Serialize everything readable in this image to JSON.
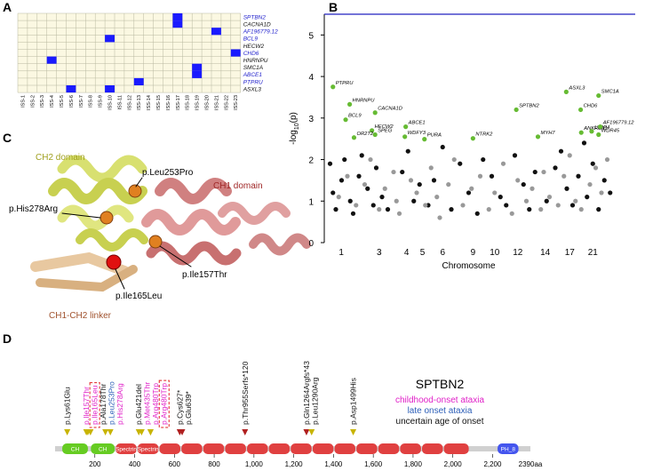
{
  "panel_labels": [
    "A",
    "B",
    "C",
    "D"
  ],
  "heatmap": {
    "columns": [
      "ISS-1",
      "ISS-2",
      "ISS-3",
      "ISS-4",
      "ISS-5",
      "ISS-6",
      "ISS-7",
      "ISS-8",
      "ISS-9",
      "ISS-10",
      "ISS-11",
      "ISS-12",
      "ISS-13",
      "ISS-14",
      "ISS-15",
      "ISS-16",
      "ISS-17",
      "ISS-18",
      "ISS-19",
      "ISS-20",
      "ISS-21",
      "ISS-22",
      "ISS-23"
    ],
    "cell_color": "#1a1aff",
    "rows": [
      {
        "gene": "SPTBN2",
        "color": "#2222cc",
        "filled": [
          17
        ]
      },
      {
        "gene": "CACNA1D",
        "color": "#111111",
        "filled": [
          17
        ]
      },
      {
        "gene": "AF196779.12",
        "color": "#2222cc",
        "filled": [
          21
        ]
      },
      {
        "gene": "BCL9",
        "color": "#2222cc",
        "filled": [
          10
        ]
      },
      {
        "gene": "HECW2",
        "color": "#111111",
        "filled": []
      },
      {
        "gene": "CHD6",
        "color": "#2222cc",
        "filled": [
          23
        ]
      },
      {
        "gene": "HNRNPU",
        "color": "#111111",
        "filled": [
          4
        ]
      },
      {
        "gene": "SMC1A",
        "color": "#111111",
        "filled": [
          19
        ]
      },
      {
        "gene": "ABCE1",
        "color": "#2222cc",
        "filled": [
          19
        ]
      },
      {
        "gene": "PTPRU",
        "color": "#2222cc",
        "filled": [
          13
        ]
      },
      {
        "gene": "ASXL3",
        "color": "#111111",
        "filled": [
          6,
          10
        ]
      }
    ]
  },
  "chart_data": {
    "type": "scatter",
    "ylabel": [
      "-log",
      "10",
      "(p)"
    ],
    "xlabel": "Chromosome",
    "ylim": [
      0,
      5.5
    ],
    "yticks": [
      0,
      1,
      2,
      3,
      4,
      5
    ],
    "xlim": [
      0,
      100
    ],
    "xticks": [
      {
        "value": 5.9,
        "label": "1"
      },
      {
        "value": 19,
        "label": "3"
      },
      {
        "value": 28.5,
        "label": "4"
      },
      {
        "value": 34,
        "label": "5"
      },
      {
        "value": 41,
        "label": "6"
      },
      {
        "value": 51.5,
        "label": "9"
      },
      {
        "value": 59,
        "label": "10"
      },
      {
        "value": 67,
        "label": "12"
      },
      {
        "value": 76.5,
        "label": "14"
      },
      {
        "value": 85,
        "label": "17"
      },
      {
        "value": 93,
        "label": "21"
      }
    ],
    "threshold": 5.5,
    "threshold_color": "#2020c0",
    "series": [
      {
        "color": "#111111",
        "x": [
          2,
          3,
          4,
          6,
          7,
          9,
          10,
          12,
          13,
          15,
          17,
          18,
          20,
          22,
          27,
          29,
          31,
          33,
          36,
          38,
          41,
          44,
          47,
          50,
          53,
          55,
          58,
          61,
          63,
          66,
          69,
          71,
          73,
          77,
          80,
          82,
          84,
          86,
          88,
          90,
          91,
          93,
          95,
          97,
          99
        ],
        "values": [
          1.9,
          1.2,
          0.8,
          1.5,
          2.0,
          1.0,
          0.7,
          1.6,
          2.1,
          1.3,
          0.9,
          1.8,
          1.1,
          0.8,
          1.7,
          2.2,
          1.0,
          1.4,
          0.9,
          1.5,
          2.3,
          0.8,
          1.9,
          1.2,
          0.7,
          2.0,
          1.6,
          1.1,
          0.9,
          2.1,
          1.4,
          0.8,
          1.7,
          1.0,
          1.8,
          2.2,
          1.3,
          0.9,
          1.6,
          2.4,
          1.1,
          1.9,
          0.8,
          1.5,
          1.2
        ]
      },
      {
        "color": "#999999",
        "x": [
          5,
          8,
          11,
          14,
          16,
          19,
          21,
          24,
          25,
          26,
          30,
          32,
          35,
          37,
          39,
          40,
          43,
          45,
          48,
          51,
          54,
          57,
          59,
          62,
          65,
          67,
          70,
          72,
          75,
          76,
          78,
          81,
          83,
          85,
          87,
          89,
          92,
          94,
          96,
          98
        ],
        "values": [
          1.1,
          1.6,
          0.9,
          1.4,
          2.0,
          0.8,
          1.3,
          1.7,
          1.0,
          0.7,
          1.5,
          1.2,
          0.9,
          1.8,
          1.1,
          0.6,
          1.4,
          2.0,
          0.9,
          1.3,
          1.6,
          0.8,
          1.2,
          1.9,
          0.7,
          1.5,
          1.0,
          1.3,
          0.8,
          1.7,
          1.1,
          0.9,
          1.6,
          2.1,
          1.0,
          0.8,
          1.4,
          1.8,
          1.2,
          2.0
        ]
      },
      {
        "color": "#66bb33",
        "labels": [
          "PTPRU",
          "HNRNPU",
          "BCL9",
          "CACNA1D",
          "HECW2",
          "SPEG",
          "OR2T2",
          "ABCE1",
          "WDFY3",
          "PURA",
          "NTRK2",
          "SPTBN2",
          "MYH7",
          "ANKRD11",
          "ASXL3",
          "SMC1A",
          "CHD6",
          "LTBP4",
          "AF196779.12",
          "WDR45"
        ],
        "x": [
          3,
          8.8,
          7.4,
          17.6,
          16.5,
          17.6,
          10.3,
          28.2,
          27.9,
          34.7,
          51.5,
          66.5,
          74,
          89,
          83.8,
          95,
          88.8,
          92.6,
          95.6,
          95
        ],
        "values": [
          3.75,
          3.33,
          2.96,
          3.13,
          2.7,
          2.6,
          2.53,
          2.79,
          2.55,
          2.49,
          2.51,
          3.2,
          2.55,
          2.65,
          3.63,
          3.54,
          3.2,
          2.68,
          2.79,
          2.6
        ]
      }
    ]
  },
  "structure": {
    "ch2": "CH2 domain",
    "ch1": "CH1 domain",
    "linker": "CH1-CH2 linker",
    "leu253": "p.Leu253Pro",
    "his278": "p.His278Arg",
    "ile157": "p.Ile157Thr",
    "ile165": "p.Ile165Leu"
  },
  "protein": {
    "title": "SPTBN2",
    "length": 2390,
    "length_label": "2390aa",
    "ticks": [
      {
        "value": 200,
        "label": "200"
      },
      {
        "value": 400,
        "label": "400"
      },
      {
        "value": 600,
        "label": "600"
      },
      {
        "value": 800,
        "label": "800"
      },
      {
        "value": 1000,
        "label": "1,000"
      },
      {
        "value": 1200,
        "label": "1,200"
      },
      {
        "value": 1400,
        "label": "1,400"
      },
      {
        "value": 1600,
        "label": "1,600"
      },
      {
        "value": 1800,
        "label": "1,800"
      },
      {
        "value": 2000,
        "label": "2,000"
      },
      {
        "value": 2200,
        "label": "2,200"
      }
    ],
    "legend": [
      {
        "label": "childhood-onset ataxia",
        "color": "#e020c8"
      },
      {
        "label": "late onset ataxia",
        "color": "#2d5fb8"
      },
      {
        "label": "uncertain age of onset",
        "color": "#111111"
      }
    ],
    "domains": [
      {
        "label": "CH",
        "start": 36,
        "end": 165,
        "color": "#66cc22"
      },
      {
        "label": "CH",
        "start": 180,
        "end": 300,
        "color": "#66cc22"
      },
      {
        "label": "Spectrin",
        "start": 305,
        "end": 410,
        "color": "#e04040"
      },
      {
        "label": "Spectrin",
        "start": 415,
        "end": 520,
        "color": "#e04040"
      },
      {
        "start": 525,
        "end": 630,
        "color": "#e04040"
      },
      {
        "start": 635,
        "end": 740,
        "color": "#e04040"
      },
      {
        "start": 745,
        "end": 850,
        "color": "#e04040"
      },
      {
        "start": 855,
        "end": 960,
        "color": "#e04040"
      },
      {
        "start": 965,
        "end": 1070,
        "color": "#e04040"
      },
      {
        "start": 1075,
        "end": 1180,
        "color": "#e04040"
      },
      {
        "start": 1185,
        "end": 1290,
        "color": "#e04040"
      },
      {
        "start": 1295,
        "end": 1400,
        "color": "#e04040"
      },
      {
        "start": 1405,
        "end": 1510,
        "color": "#e04040"
      },
      {
        "start": 1515,
        "end": 1620,
        "color": "#e04040"
      },
      {
        "start": 1625,
        "end": 1730,
        "color": "#e04040"
      },
      {
        "start": 1735,
        "end": 1840,
        "color": "#e04040"
      },
      {
        "start": 1845,
        "end": 1950,
        "color": "#e04040"
      },
      {
        "start": 1955,
        "end": 2080,
        "color": "#e04040"
      },
      {
        "label": "PH_8",
        "start": 2225,
        "end": 2330,
        "color": "#4455ee"
      }
    ],
    "variants": [
      {
        "label": "p.Lys61Glu",
        "position": 61,
        "color": "#111111",
        "marker": "#c8b400"
      },
      {
        "label": "p.Ile157Thr",
        "position": 157,
        "color": "#e020c8",
        "marker": "#c8b400"
      },
      {
        "label": "p.Ile165Leu",
        "position": 165,
        "color": "#e020c8",
        "marker": "#c8b400",
        "boxed": true
      },
      {
        "label": "p.Ala178Thr",
        "position": 178,
        "color": "#111111",
        "marker": "#c8b400"
      },
      {
        "label": "p.Leu253Pro",
        "position": 253,
        "color": "#2d5fb8",
        "marker": "#c8b400"
      },
      {
        "label": "p.His278Arg",
        "position": 278,
        "color": "#e020c8",
        "marker": "#c8b400"
      },
      {
        "label": "p.Glu421del",
        "position": 421,
        "color": "#111111",
        "marker": "#c8b400"
      },
      {
        "label": "p.Met435Thr",
        "position": 435,
        "color": "#e020c8",
        "marker": "#c8b400"
      },
      {
        "label": "p.Arg480Trp",
        "position": 480,
        "color": "#e020c8",
        "marker": "#c8b400"
      },
      {
        "label": "p.Arg480Trp",
        "position": 480,
        "color": "#e020c8",
        "marker": "#c8b400",
        "boxed": true
      },
      {
        "label": "p.Cys627*",
        "position": 627,
        "color": "#111111",
        "marker": "#b02020"
      },
      {
        "label": "p.Glu639*",
        "position": 639,
        "color": "#111111",
        "marker": "#b02020"
      },
      {
        "label": "p.Thr955Serfs*120",
        "position": 955,
        "color": "#111111",
        "marker": "#b02020"
      },
      {
        "label": "p.Gln1264Argfs*43",
        "position": 1264,
        "color": "#111111",
        "marker": "#b02020"
      },
      {
        "label": "p.Leu1290Arg",
        "position": 1290,
        "color": "#111111",
        "marker": "#c8b400"
      },
      {
        "label": "p.Asp1499His",
        "position": 1499,
        "color": "#111111",
        "marker": "#c8b400"
      }
    ]
  }
}
